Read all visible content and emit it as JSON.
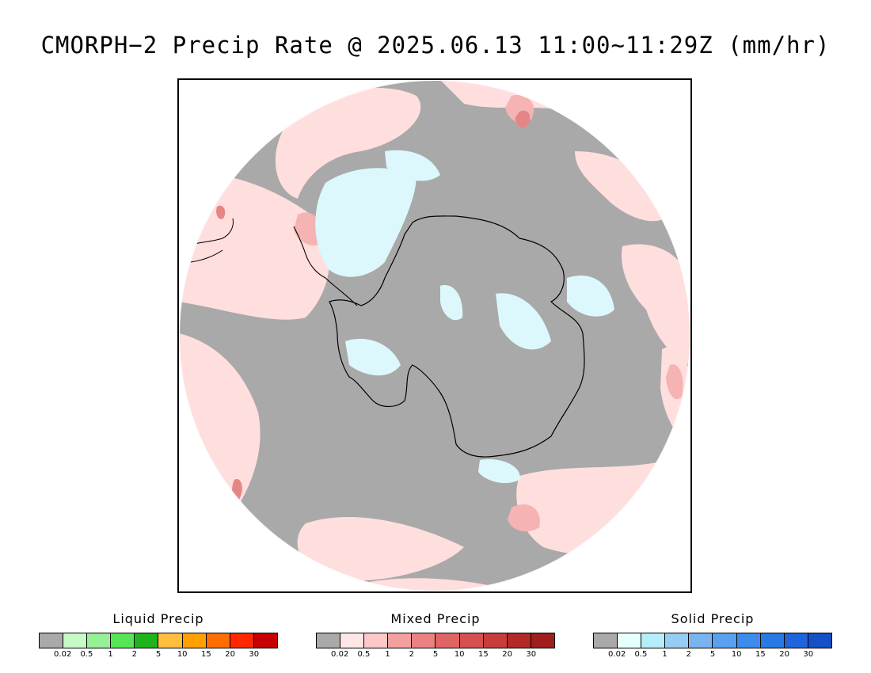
{
  "title": "CMORPH−2 Precip Rate @ 2025.06.13 11:00~11:29Z (mm/hr)",
  "map": {
    "projection": "south-polar-stereographic",
    "colors": {
      "background_no_precip": "#a9a9a9",
      "mixed_light": "#ffdede",
      "mixed_mid": "#f5b3b3",
      "mixed_strong": "#e58585",
      "solid_light": "#dcf8fc",
      "coastline": "#000000"
    }
  },
  "legends": [
    {
      "title": "Liquid Precip",
      "colors": [
        "#a9a9a9",
        "#c8fac8",
        "#96f096",
        "#55e655",
        "#1eb41e",
        "#ffbe3c",
        "#ffa000",
        "#ff6e00",
        "#ff2800",
        "#c80000"
      ],
      "ticks": [
        "0.02",
        "0.5",
        "1",
        "2",
        "5",
        "10",
        "15",
        "20",
        "30"
      ]
    },
    {
      "title": "Mixed Precip",
      "colors": [
        "#a9a9a9",
        "#ffe6e6",
        "#ffc8c8",
        "#f5a0a0",
        "#eb8282",
        "#e16464",
        "#d75050",
        "#c83c3c",
        "#b42828",
        "#a01e1e"
      ],
      "ticks": [
        "0.02",
        "0.5",
        "1",
        "2",
        "5",
        "10",
        "15",
        "20",
        "30"
      ]
    },
    {
      "title": "Solid Precip",
      "colors": [
        "#a9a9a9",
        "#e6ffff",
        "#b4eefa",
        "#96cdf5",
        "#78b4f0",
        "#5aa0f0",
        "#3c8cf0",
        "#2878e6",
        "#1e64dc",
        "#1450c8"
      ],
      "ticks": [
        "0.02",
        "0.5",
        "1",
        "2",
        "5",
        "10",
        "15",
        "20",
        "30"
      ]
    }
  ]
}
